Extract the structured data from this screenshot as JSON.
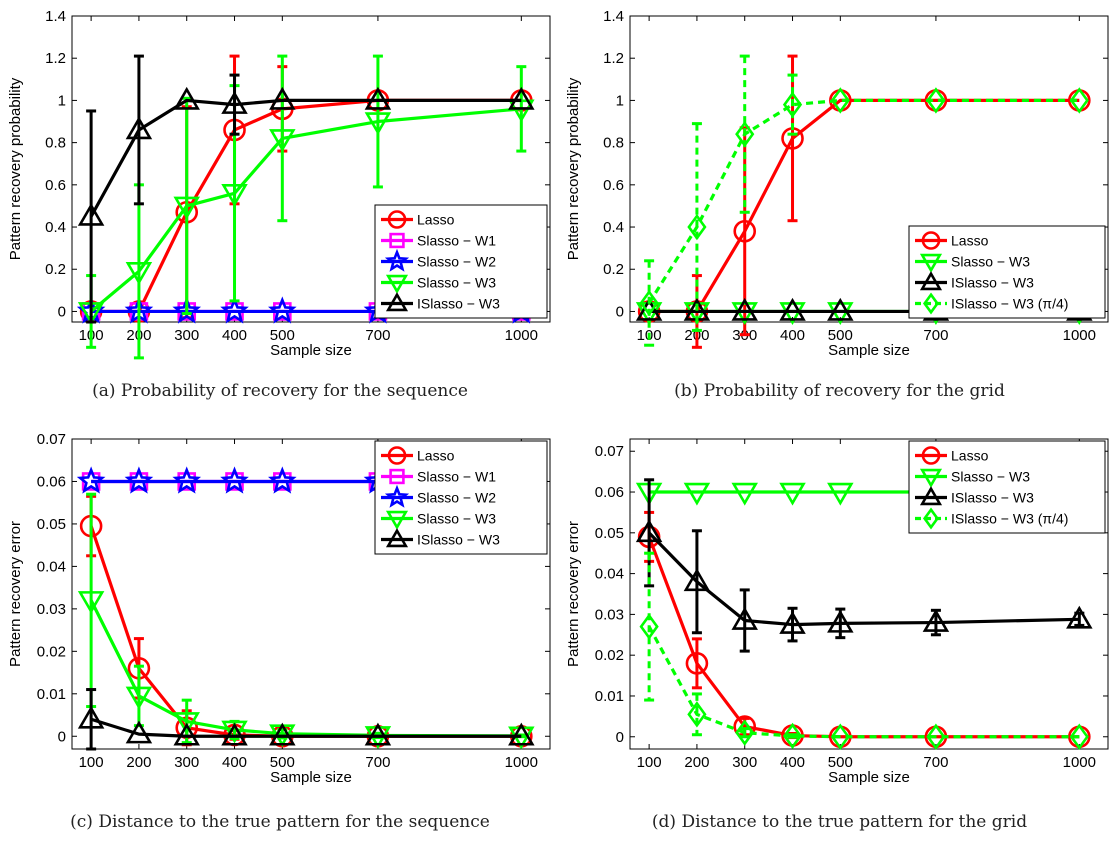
{
  "chart_data": [
    {
      "type": "line",
      "caption": "(a) Probability of recovery for the sequence",
      "xlabel": "Sample size",
      "ylabel": "Pattern recovery probability",
      "x": [
        100,
        200,
        300,
        400,
        500,
        700,
        1000
      ],
      "xticks": [
        "100",
        "200",
        "300",
        "400",
        "500",
        "700",
        "1000"
      ],
      "xlim": [
        60,
        1060
      ],
      "ylim": [
        -0.05,
        1.4
      ],
      "yticks": [
        "0",
        "0.2",
        "0.4",
        "0.6",
        "0.8",
        "1",
        "1.2",
        "1.4"
      ],
      "legend_position": "bottom-right",
      "series": [
        {
          "name": "Lasso",
          "color": "#ff0000",
          "marker": "circle",
          "dash": false,
          "values": [
            0,
            0,
            0.47,
            0.86,
            0.96,
            1,
            1
          ],
          "errors": [
            0,
            0,
            0.5,
            0.35,
            0.2,
            0,
            0
          ]
        },
        {
          "name": "Slasso − W1",
          "color": "#ff00ff",
          "marker": "square",
          "dash": false,
          "values": [
            0,
            0,
            0,
            0,
            0,
            0,
            0
          ],
          "errors": [
            0,
            0,
            0,
            0,
            0,
            0,
            0
          ]
        },
        {
          "name": "Slasso − W2",
          "color": "#0000ff",
          "marker": "star",
          "dash": false,
          "values": [
            0,
            0,
            0,
            0,
            0,
            0,
            0
          ],
          "errors": [
            0,
            0,
            0,
            0,
            0,
            0,
            0
          ]
        },
        {
          "name": "Slasso −  W3",
          "color": "#00ff00",
          "marker": "triangle-down",
          "dash": false,
          "values": [
            0,
            0.19,
            0.5,
            0.56,
            0.82,
            0.9,
            0.96
          ],
          "errors": [
            0.17,
            0.41,
            0.51,
            0.51,
            0.39,
            0.31,
            0.2
          ]
        },
        {
          "name": "ISlasso − W3",
          "color": "#000000",
          "marker": "triangle-up",
          "dash": false,
          "values": [
            0.45,
            0.86,
            1,
            0.98,
            1,
            1,
            1
          ],
          "errors": [
            0.5,
            0.35,
            0,
            0.14,
            0,
            0,
            0
          ]
        }
      ]
    },
    {
      "type": "line",
      "caption": "(b) Probability of recovery for the grid",
      "xlabel": "Sample size",
      "ylabel": "Pattern recovery probability",
      "x": [
        100,
        200,
        300,
        400,
        500,
        700,
        1000
      ],
      "xticks": [
        "100",
        "200",
        "300",
        "400",
        "500",
        "700",
        "1000"
      ],
      "xlim": [
        60,
        1060
      ],
      "ylim": [
        -0.05,
        1.4
      ],
      "yticks": [
        "0",
        "0.2",
        "0.4",
        "0.6",
        "0.8",
        "1",
        "1.2",
        "1.4"
      ],
      "legend_position": "bottom-right",
      "series": [
        {
          "name": "Lasso",
          "color": "#ff0000",
          "marker": "circle",
          "dash": false,
          "values": [
            0,
            0,
            0.38,
            0.82,
            1,
            1,
            1
          ],
          "errors": [
            0,
            0.17,
            0.49,
            0.39,
            0,
            0,
            0
          ]
        },
        {
          "name": "Slasso − W3",
          "color": "#00ff00",
          "marker": "triangle-down",
          "dash": false,
          "values": [
            0,
            0,
            0,
            0,
            0,
            0,
            0
          ],
          "errors": [
            0,
            0,
            0,
            0,
            0,
            0,
            0
          ]
        },
        {
          "name": "ISlasso − W3",
          "color": "#000000",
          "marker": "triangle-up",
          "dash": false,
          "values": [
            0,
            0,
            0,
            0,
            0,
            0,
            0
          ],
          "errors": [
            0,
            0,
            0,
            0,
            0,
            0,
            0
          ]
        },
        {
          "name": "ISlasso − W3 (π/4)",
          "color": "#00ff00",
          "marker": "diamond",
          "dash": true,
          "values": [
            0.04,
            0.4,
            0.84,
            0.98,
            1,
            1,
            1
          ],
          "errors": [
            0.2,
            0.49,
            0.37,
            0.14,
            0,
            0,
            0
          ]
        }
      ]
    },
    {
      "type": "line",
      "caption": "(c) Distance to the true pattern for the sequence",
      "xlabel": "Sample size",
      "ylabel": "Pattern recovery error",
      "x": [
        100,
        200,
        300,
        400,
        500,
        700,
        1000
      ],
      "xticks": [
        "100",
        "200",
        "300",
        "400",
        "500",
        "700",
        "1000"
      ],
      "xlim": [
        60,
        1060
      ],
      "ylim": [
        -0.003,
        0.07
      ],
      "yticks": [
        "0",
        "0.01",
        "0.02",
        "0.03",
        "0.04",
        "0.05",
        "0.06",
        "0.07"
      ],
      "legend_position": "top-right",
      "series": [
        {
          "name": "Lasso",
          "color": "#ff0000",
          "marker": "circle",
          "dash": false,
          "values": [
            0.0495,
            0.016,
            0.002,
            0.0003,
            0,
            0,
            0
          ],
          "errors": [
            0.007,
            0.007,
            0.004,
            0.001,
            0,
            0,
            0
          ]
        },
        {
          "name": "Slasso − W1",
          "color": "#ff00ff",
          "marker": "square",
          "dash": false,
          "values": [
            0.06,
            0.06,
            0.06,
            0.06,
            0.06,
            0.06,
            0.06
          ],
          "errors": [
            0,
            0,
            0,
            0,
            0,
            0,
            0
          ]
        },
        {
          "name": "Slasso − W2",
          "color": "#0000ff",
          "marker": "star",
          "dash": false,
          "values": [
            0.06,
            0.06,
            0.06,
            0.06,
            0.06,
            0.06,
            0.06
          ],
          "errors": [
            0,
            0,
            0,
            0,
            0,
            0,
            0
          ]
        },
        {
          "name": "Slasso −  W3",
          "color": "#00ff00",
          "marker": "triangle-down",
          "dash": false,
          "values": [
            0.032,
            0.0095,
            0.0035,
            0.0015,
            0.0006,
            0.0002,
            0.0001
          ],
          "errors": [
            0.025,
            0.007,
            0.005,
            0.002,
            0.001,
            0.0005,
            0.0002
          ]
        },
        {
          "name": "ISlasso − W3",
          "color": "#000000",
          "marker": "triangle-up",
          "dash": false,
          "values": [
            0.004,
            0.0005,
            0,
            0,
            0,
            0,
            0
          ],
          "errors": [
            0.007,
            0,
            0,
            0,
            0,
            0,
            0
          ]
        }
      ]
    },
    {
      "type": "line",
      "caption": "(d) Distance to the true pattern for the grid",
      "xlabel": "Sample size",
      "ylabel": "Pattern recovery error",
      "x": [
        100,
        200,
        300,
        400,
        500,
        700,
        1000
      ],
      "xticks": [
        "100",
        "200",
        "300",
        "400",
        "500",
        "700",
        "1000"
      ],
      "xlim": [
        60,
        1060
      ],
      "ylim": [
        -0.003,
        0.073
      ],
      "yticks": [
        "0",
        "0.01",
        "0.02",
        "0.03",
        "0.04",
        "0.05",
        "0.06",
        "0.07"
      ],
      "legend_position": "top-right",
      "series": [
        {
          "name": "Lasso",
          "color": "#ff0000",
          "marker": "circle",
          "dash": false,
          "values": [
            0.049,
            0.018,
            0.0025,
            0.0003,
            0,
            0,
            0
          ],
          "errors": [
            0.006,
            0.006,
            0.002,
            0.0005,
            0,
            0,
            0
          ]
        },
        {
          "name": "Slasso − W3",
          "color": "#00ff00",
          "marker": "triangle-down",
          "dash": false,
          "values": [
            0.06,
            0.06,
            0.06,
            0.06,
            0.06,
            0.06,
            0.06
          ],
          "errors": [
            0,
            0,
            0,
            0,
            0,
            0,
            0
          ]
        },
        {
          "name": "ISlasso − W3",
          "color": "#000000",
          "marker": "triangle-up",
          "dash": false,
          "values": [
            0.05,
            0.038,
            0.0285,
            0.0275,
            0.0278,
            0.028,
            0.0288
          ],
          "errors": [
            0.013,
            0.0125,
            0.0075,
            0.004,
            0.0035,
            0.003,
            0.0015
          ]
        },
        {
          "name": "ISlasso − W3 (π/4)",
          "color": "#00ff00",
          "marker": "diamond",
          "dash": true,
          "values": [
            0.027,
            0.0055,
            0.001,
            0.0002,
            0,
            0,
            0
          ],
          "errors": [
            0.018,
            0.005,
            0.001,
            0.0003,
            0,
            0,
            0
          ]
        }
      ]
    }
  ]
}
